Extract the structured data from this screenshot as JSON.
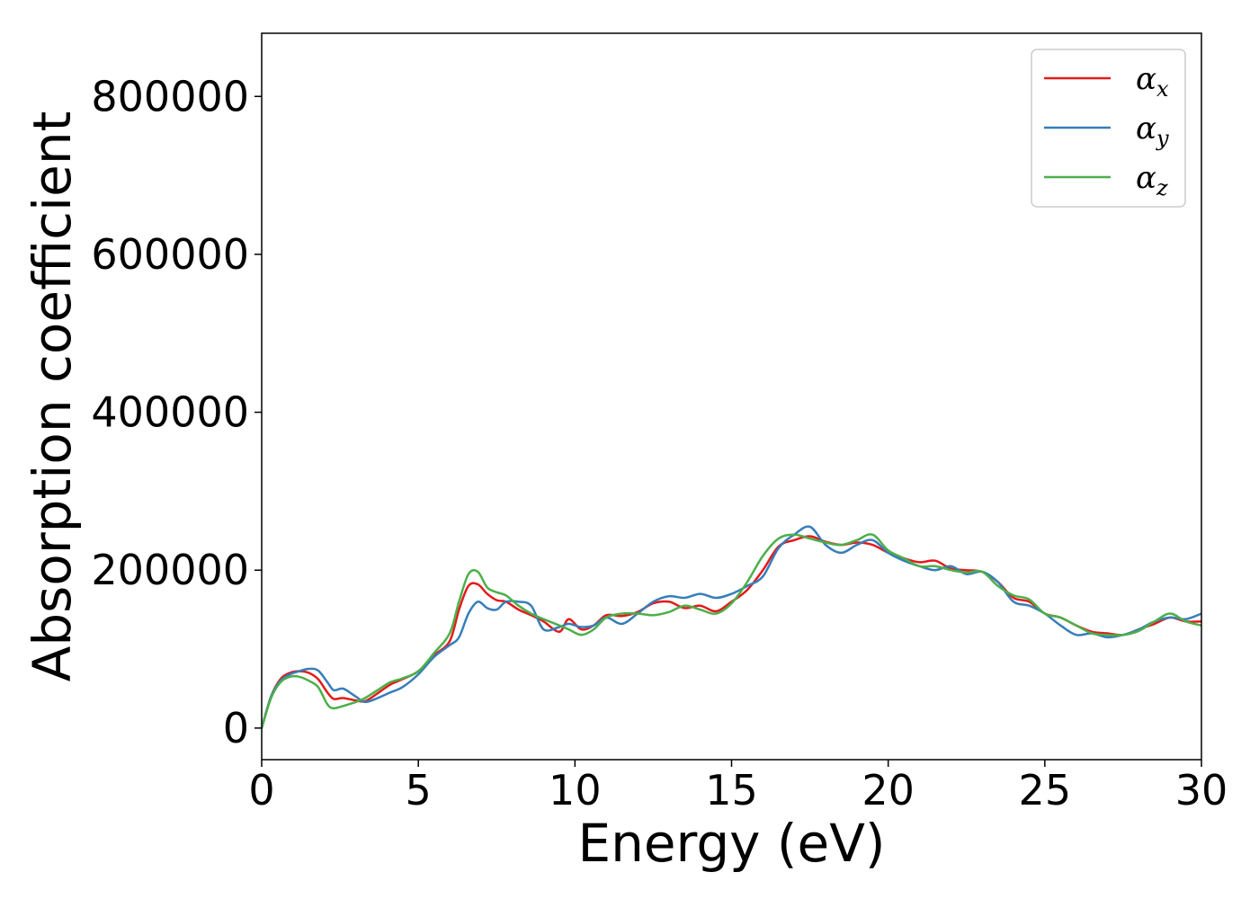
{
  "chart_data": {
    "type": "line",
    "title": "",
    "xlabel": "Energy (eV)",
    "ylabel": "Absorption coefficient",
    "xlim": [
      0,
      30
    ],
    "ylim": [
      -40000,
      880000
    ],
    "xticks": [
      0,
      5,
      10,
      15,
      20,
      25,
      30
    ],
    "yticks": [
      0,
      200000,
      400000,
      600000,
      800000
    ],
    "grid": false,
    "legend_position": "top-right",
    "series": [
      {
        "name": "α_x",
        "label_main": "α",
        "label_sub": "x",
        "color": "#e41a1c",
        "x": [
          0,
          0.3,
          0.6,
          0.9,
          1.2,
          1.5,
          1.8,
          2.1,
          2.3,
          2.6,
          3.0,
          3.3,
          3.7,
          4.1,
          4.5,
          5.0,
          5.5,
          6.0,
          6.3,
          6.6,
          6.9,
          7.2,
          7.5,
          7.8,
          8.2,
          8.6,
          9.0,
          9.5,
          9.8,
          10.2,
          10.6,
          11.0,
          11.5,
          12.0,
          12.5,
          13.0,
          13.5,
          14.0,
          14.5,
          15.0,
          15.5,
          16.0,
          16.5,
          17.0,
          17.5,
          18.0,
          18.5,
          19.0,
          19.5,
          20.0,
          20.5,
          21.0,
          21.5,
          22.0,
          22.5,
          23.0,
          23.5,
          24.0,
          24.5,
          25.0,
          25.5,
          26.0,
          26.5,
          27.0,
          27.5,
          28.0,
          28.5,
          29.0,
          29.5,
          30.0
        ],
        "values": [
          0,
          40000,
          62000,
          70000,
          72000,
          70000,
          62000,
          45000,
          37000,
          38000,
          35000,
          34000,
          44000,
          55000,
          62000,
          72000,
          92000,
          110000,
          150000,
          180000,
          182000,
          170000,
          162000,
          160000,
          150000,
          143000,
          135000,
          122000,
          138000,
          125000,
          130000,
          143000,
          142000,
          147000,
          158000,
          160000,
          152000,
          155000,
          148000,
          160000,
          175000,
          200000,
          230000,
          238000,
          243000,
          236000,
          232000,
          235000,
          232000,
          222000,
          215000,
          210000,
          212000,
          202000,
          200000,
          198000,
          185000,
          165000,
          160000,
          145000,
          140000,
          130000,
          122000,
          120000,
          118000,
          125000,
          132000,
          140000,
          135000,
          135000
        ]
      },
      {
        "name": "α_y",
        "label_main": "α",
        "label_sub": "y",
        "color": "#377eb8",
        "x": [
          0,
          0.3,
          0.6,
          0.9,
          1.2,
          1.5,
          1.8,
          2.1,
          2.3,
          2.6,
          3.0,
          3.3,
          3.7,
          4.1,
          4.5,
          5.0,
          5.5,
          6.0,
          6.3,
          6.6,
          6.9,
          7.2,
          7.5,
          7.8,
          8.2,
          8.6,
          9.0,
          9.5,
          9.8,
          10.2,
          10.6,
          11.0,
          11.5,
          12.0,
          12.5,
          13.0,
          13.5,
          14.0,
          14.5,
          15.0,
          15.5,
          16.0,
          16.5,
          17.0,
          17.5,
          18.0,
          18.5,
          19.0,
          19.5,
          20.0,
          20.5,
          21.0,
          21.5,
          22.0,
          22.5,
          23.0,
          23.5,
          24.0,
          24.5,
          25.0,
          25.5,
          26.0,
          26.5,
          27.0,
          27.5,
          28.0,
          28.5,
          29.0,
          29.5,
          30.0
        ],
        "values": [
          0,
          40000,
          60000,
          68000,
          72000,
          75000,
          73000,
          58000,
          48000,
          50000,
          40000,
          33000,
          38000,
          45000,
          52000,
          68000,
          90000,
          105000,
          115000,
          145000,
          160000,
          152000,
          150000,
          160000,
          160000,
          155000,
          125000,
          128000,
          132000,
          128000,
          130000,
          140000,
          132000,
          145000,
          160000,
          167000,
          165000,
          170000,
          165000,
          170000,
          180000,
          192000,
          228000,
          245000,
          255000,
          232000,
          222000,
          232000,
          238000,
          222000,
          212000,
          205000,
          200000,
          205000,
          195000,
          198000,
          185000,
          160000,
          155000,
          145000,
          130000,
          118000,
          120000,
          115000,
          118000,
          125000,
          135000,
          140000,
          138000,
          145000
        ]
      },
      {
        "name": "α_z",
        "label_main": "α",
        "label_sub": "z",
        "color": "#4daf4a",
        "x": [
          0,
          0.3,
          0.6,
          0.9,
          1.2,
          1.5,
          1.8,
          2.1,
          2.3,
          2.6,
          3.0,
          3.3,
          3.7,
          4.1,
          4.5,
          5.0,
          5.5,
          6.0,
          6.3,
          6.6,
          6.9,
          7.2,
          7.5,
          7.8,
          8.2,
          8.6,
          9.0,
          9.5,
          9.8,
          10.2,
          10.6,
          11.0,
          11.5,
          12.0,
          12.5,
          13.0,
          13.5,
          14.0,
          14.5,
          15.0,
          15.5,
          16.0,
          16.5,
          17.0,
          17.5,
          18.0,
          18.5,
          19.0,
          19.5,
          20.0,
          20.5,
          21.0,
          21.5,
          22.0,
          22.5,
          23.0,
          23.5,
          24.0,
          24.5,
          25.0,
          25.5,
          26.0,
          26.5,
          27.0,
          27.5,
          28.0,
          28.5,
          29.0,
          29.5,
          30.0
        ],
        "values": [
          0,
          38000,
          58000,
          65000,
          65000,
          60000,
          52000,
          30000,
          25000,
          28000,
          33000,
          38000,
          48000,
          58000,
          63000,
          72000,
          95000,
          120000,
          160000,
          195000,
          198000,
          178000,
          172000,
          168000,
          155000,
          145000,
          138000,
          130000,
          125000,
          118000,
          125000,
          140000,
          145000,
          145000,
          143000,
          147000,
          155000,
          150000,
          145000,
          158000,
          185000,
          218000,
          240000,
          245000,
          240000,
          235000,
          232000,
          238000,
          245000,
          225000,
          215000,
          205000,
          205000,
          200000,
          197000,
          198000,
          180000,
          168000,
          163000,
          145000,
          140000,
          130000,
          120000,
          118000,
          118000,
          123000,
          135000,
          145000,
          135000,
          130000
        ]
      }
    ]
  }
}
